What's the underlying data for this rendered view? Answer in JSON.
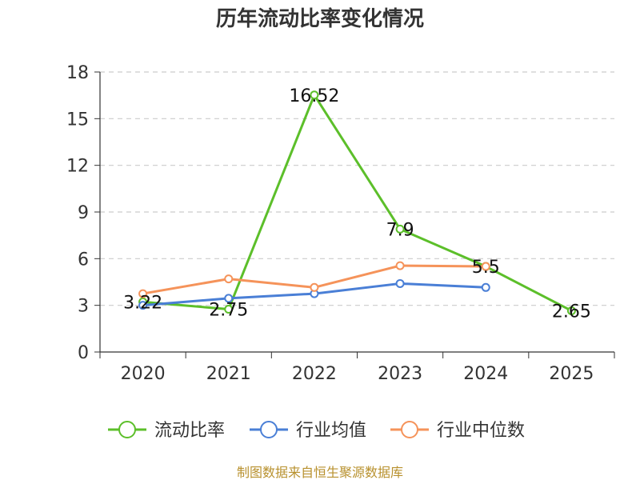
{
  "chart_data": {
    "type": "line",
    "title": "历年流动比率变化情况",
    "categories": [
      "2020",
      "2021",
      "2022",
      "2023",
      "2024",
      "2025"
    ],
    "ylim": [
      0,
      18
    ],
    "yticks": [
      0,
      3,
      6,
      9,
      12,
      15,
      18
    ],
    "grid": true,
    "legend_position": "bottom",
    "series": [
      {
        "name": "流动比率",
        "color": "#5cbf2a",
        "values": [
          3.22,
          2.75,
          16.52,
          7.9,
          5.5,
          2.65
        ],
        "labels": [
          "3.22",
          "2.75",
          "16.52",
          "7.9",
          "5.5",
          "2.65"
        ]
      },
      {
        "name": "行业均值",
        "color": "#4a7fd6",
        "values": [
          3.0,
          3.45,
          3.75,
          4.4,
          4.15,
          null
        ]
      },
      {
        "name": "行业中位数",
        "color": "#f5935a",
        "values": [
          3.75,
          4.7,
          4.15,
          5.55,
          5.5,
          null
        ]
      }
    ]
  },
  "footer": {
    "source": "制图数据来自恒生聚源数据库"
  }
}
